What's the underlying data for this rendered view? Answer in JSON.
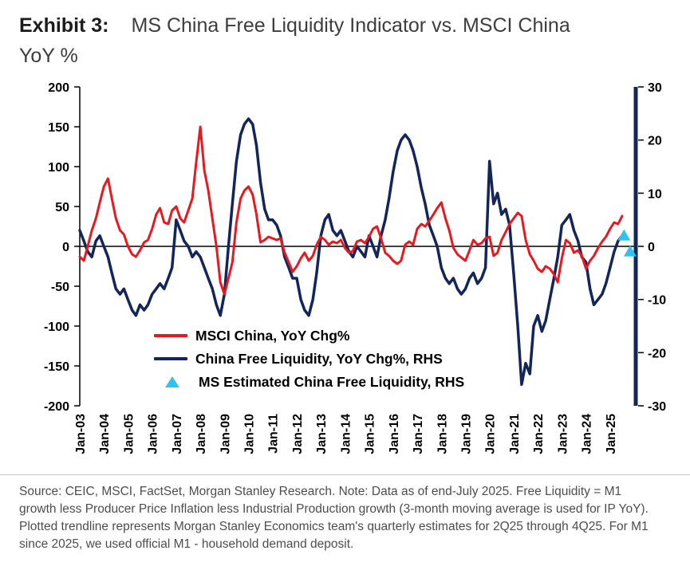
{
  "title": {
    "exhibit": "Exhibit 3:",
    "line1": "MS China Free Liquidity Indicator vs. MSCI China",
    "line2": "YoY %"
  },
  "legend": [
    {
      "label": "MSCI China, YoY Chg%",
      "type": "line",
      "color": "#e8181f"
    },
    {
      "label": "China Free Liquidity, YoY Chg%, RHS",
      "type": "line",
      "color": "#13265c"
    },
    {
      "label": "MS Estimated China Free Liquidity, RHS",
      "type": "triangle",
      "color": "#33c1f0"
    }
  ],
  "source_note": "Source: CEIC, MSCI, FactSet, Morgan Stanley Research. Note: Data as of end-July 2025. Free Liquidity = M1 growth less Producer Price Inflation less Industrial Production growth (3-month moving average is used for IP YoY). Plotted trendline represents Morgan Stanley Economics team's quarterly estimates for 2Q25 through 4Q25. For M1 since 2025, we used official M1 - household demand deposit.",
  "chart_data": {
    "type": "line",
    "title": "MS China Free Liquidity Indicator vs. MSCI China YoY %",
    "left_axis": {
      "ticks": [
        200,
        150,
        100,
        50,
        0,
        -50,
        -100,
        -150,
        -200
      ],
      "range": [
        -200,
        200
      ]
    },
    "right_axis": {
      "ticks": [
        30,
        20,
        10,
        0,
        -10,
        -20,
        -30
      ],
      "range": [
        -30,
        30
      ]
    },
    "x_axis": {
      "tick_labels": [
        "Jan-03",
        "Jan-04",
        "Jan-05",
        "Jan-06",
        "Jan-07",
        "Jan-08",
        "Jan-09",
        "Jan-10",
        "Jan-11",
        "Jan-12",
        "Jan-13",
        "Jan-14",
        "Jan-15",
        "Jan-16",
        "Jan-17",
        "Jan-18",
        "Jan-19",
        "Jan-20",
        "Jan-21",
        "Jan-22",
        "Jan-23",
        "Jan-24",
        "Jan-25"
      ],
      "range": [
        2003,
        2026
      ]
    },
    "grid": false,
    "legend_position": "inside-lower-center",
    "series": [
      {
        "name": "MSCI China, YoY Chg%",
        "axis": "left",
        "color": "#e8181f",
        "width": 3,
        "z": 2,
        "x": [
          2003.0,
          2003.17,
          2003.33,
          2003.5,
          2003.67,
          2003.83,
          2004.0,
          2004.17,
          2004.33,
          2004.5,
          2004.67,
          2004.83,
          2005.0,
          2005.17,
          2005.33,
          2005.5,
          2005.67,
          2005.83,
          2006.0,
          2006.17,
          2006.33,
          2006.5,
          2006.67,
          2006.83,
          2007.0,
          2007.17,
          2007.33,
          2007.5,
          2007.67,
          2007.83,
          2008.0,
          2008.17,
          2008.33,
          2008.5,
          2008.67,
          2008.83,
          2009.0,
          2009.17,
          2009.33,
          2009.5,
          2009.67,
          2009.83,
          2010.0,
          2010.17,
          2010.33,
          2010.5,
          2010.67,
          2010.83,
          2011.0,
          2011.17,
          2011.33,
          2011.5,
          2011.67,
          2011.83,
          2012.0,
          2012.17,
          2012.33,
          2012.5,
          2012.67,
          2012.83,
          2013.0,
          2013.17,
          2013.33,
          2013.5,
          2013.67,
          2013.83,
          2014.0,
          2014.17,
          2014.33,
          2014.5,
          2014.67,
          2014.83,
          2015.0,
          2015.17,
          2015.33,
          2015.5,
          2015.67,
          2015.83,
          2016.0,
          2016.17,
          2016.33,
          2016.5,
          2016.67,
          2016.83,
          2017.0,
          2017.17,
          2017.33,
          2017.5,
          2017.67,
          2017.83,
          2018.0,
          2018.17,
          2018.33,
          2018.5,
          2018.67,
          2018.83,
          2019.0,
          2019.17,
          2019.33,
          2019.5,
          2019.67,
          2019.83,
          2020.0,
          2020.17,
          2020.33,
          2020.5,
          2020.67,
          2020.83,
          2021.0,
          2021.17,
          2021.33,
          2021.5,
          2021.67,
          2021.83,
          2022.0,
          2022.17,
          2022.33,
          2022.5,
          2022.67,
          2022.83,
          2023.0,
          2023.17,
          2023.33,
          2023.5,
          2023.67,
          2023.83,
          2024.0,
          2024.17,
          2024.33,
          2024.5,
          2024.67,
          2024.83,
          2025.0,
          2025.17,
          2025.33,
          2025.5
        ],
        "values": [
          -13,
          -18,
          0,
          20,
          35,
          55,
          75,
          85,
          60,
          35,
          20,
          15,
          0,
          -10,
          -13,
          -5,
          5,
          8,
          22,
          40,
          48,
          30,
          28,
          45,
          50,
          35,
          30,
          45,
          60,
          105,
          150,
          95,
          70,
          35,
          0,
          -45,
          -60,
          -40,
          -20,
          30,
          60,
          70,
          75,
          65,
          40,
          5,
          8,
          12,
          10,
          8,
          10,
          -8,
          -20,
          -32,
          -25,
          -15,
          -8,
          -18,
          -12,
          2,
          12,
          8,
          2,
          6,
          4,
          8,
          -2,
          -8,
          -6,
          6,
          8,
          4,
          12,
          22,
          25,
          10,
          -8,
          -12,
          -18,
          -22,
          -18,
          2,
          6,
          2,
          22,
          28,
          25,
          32,
          40,
          48,
          55,
          35,
          20,
          -2,
          -10,
          -14,
          -18,
          -5,
          8,
          2,
          4,
          10,
          12,
          -12,
          -8,
          8,
          18,
          28,
          35,
          42,
          38,
          8,
          -10,
          -18,
          -28,
          -32,
          -25,
          -28,
          -35,
          -45,
          -15,
          8,
          4,
          -8,
          -5,
          -12,
          -28,
          -18,
          -12,
          -2,
          6,
          12,
          22,
          30,
          28,
          38
        ]
      },
      {
        "name": "China Free Liquidity, YoY Chg%, RHS",
        "axis": "right",
        "color": "#13265c",
        "width": 3.5,
        "z": 1,
        "x": [
          2003.0,
          2003.17,
          2003.33,
          2003.5,
          2003.67,
          2003.83,
          2004.0,
          2004.17,
          2004.33,
          2004.5,
          2004.67,
          2004.83,
          2005.0,
          2005.17,
          2005.33,
          2005.5,
          2005.67,
          2005.83,
          2006.0,
          2006.17,
          2006.33,
          2006.5,
          2006.67,
          2006.83,
          2007.0,
          2007.17,
          2007.33,
          2007.5,
          2007.67,
          2007.83,
          2008.0,
          2008.17,
          2008.33,
          2008.5,
          2008.67,
          2008.83,
          2009.0,
          2009.17,
          2009.33,
          2009.5,
          2009.67,
          2009.83,
          2010.0,
          2010.17,
          2010.33,
          2010.5,
          2010.67,
          2010.83,
          2011.0,
          2011.17,
          2011.33,
          2011.5,
          2011.67,
          2011.83,
          2012.0,
          2012.17,
          2012.33,
          2012.5,
          2012.67,
          2012.83,
          2013.0,
          2013.17,
          2013.33,
          2013.5,
          2013.67,
          2013.83,
          2014.0,
          2014.17,
          2014.33,
          2014.5,
          2014.67,
          2014.83,
          2015.0,
          2015.17,
          2015.33,
          2015.5,
          2015.67,
          2015.83,
          2016.0,
          2016.17,
          2016.33,
          2016.5,
          2016.67,
          2016.83,
          2017.0,
          2017.17,
          2017.33,
          2017.5,
          2017.67,
          2017.83,
          2018.0,
          2018.17,
          2018.33,
          2018.5,
          2018.67,
          2018.83,
          2019.0,
          2019.17,
          2019.33,
          2019.5,
          2019.67,
          2019.83,
          2020.0,
          2020.17,
          2020.33,
          2020.5,
          2020.67,
          2020.83,
          2021.0,
          2021.17,
          2021.33,
          2021.5,
          2021.67,
          2021.83,
          2022.0,
          2022.17,
          2022.33,
          2022.5,
          2022.67,
          2022.83,
          2023.0,
          2023.17,
          2023.33,
          2023.5,
          2023.67,
          2023.83,
          2024.0,
          2024.17,
          2024.33,
          2024.5,
          2024.67,
          2024.83,
          2025.0,
          2025.17,
          2025.33,
          2025.5
        ],
        "values": [
          3,
          1,
          -1,
          -2,
          1,
          2,
          0,
          -2,
          -5,
          -8,
          -9,
          -8,
          -10,
          -12,
          -13,
          -11,
          -12,
          -11,
          -9,
          -8,
          -7,
          -8,
          -6,
          -4,
          5,
          3,
          1,
          0,
          -2,
          -1,
          -2,
          -4,
          -6,
          -8,
          -11,
          -13,
          -9,
          0,
          8,
          16,
          21,
          23,
          24,
          23,
          19,
          12,
          7,
          5,
          5,
          4,
          2,
          -2,
          -4,
          -6,
          -6,
          -10,
          -12,
          -13,
          -10,
          -5,
          2,
          5,
          6,
          3,
          2,
          3,
          1,
          -1,
          -2,
          0,
          -1,
          -2,
          2,
          0,
          -2,
          2,
          5,
          9,
          14,
          18,
          20,
          21,
          20,
          18,
          15,
          11,
          8,
          4,
          2,
          0,
          -4,
          -6,
          -7,
          -6,
          -8,
          -9,
          -8,
          -6,
          -5,
          -7,
          -6,
          -4,
          16,
          8,
          10,
          6,
          7,
          4,
          -5,
          -15,
          -26,
          -22,
          -24,
          -15,
          -13,
          -16,
          -14,
          -10,
          -6,
          -2,
          4,
          5,
          6,
          3,
          1,
          -2,
          -3,
          -8,
          -11,
          -10,
          -9,
          -7,
          -4,
          -1,
          1,
          2
        ]
      },
      {
        "name": "MS Estimated China Free Liquidity, RHS",
        "axis": "right",
        "type": "scatter-triangle",
        "color": "#33c1f0",
        "z": 3,
        "x": [
          2025.58,
          2025.83
        ],
        "values": [
          2,
          -1
        ]
      }
    ]
  }
}
